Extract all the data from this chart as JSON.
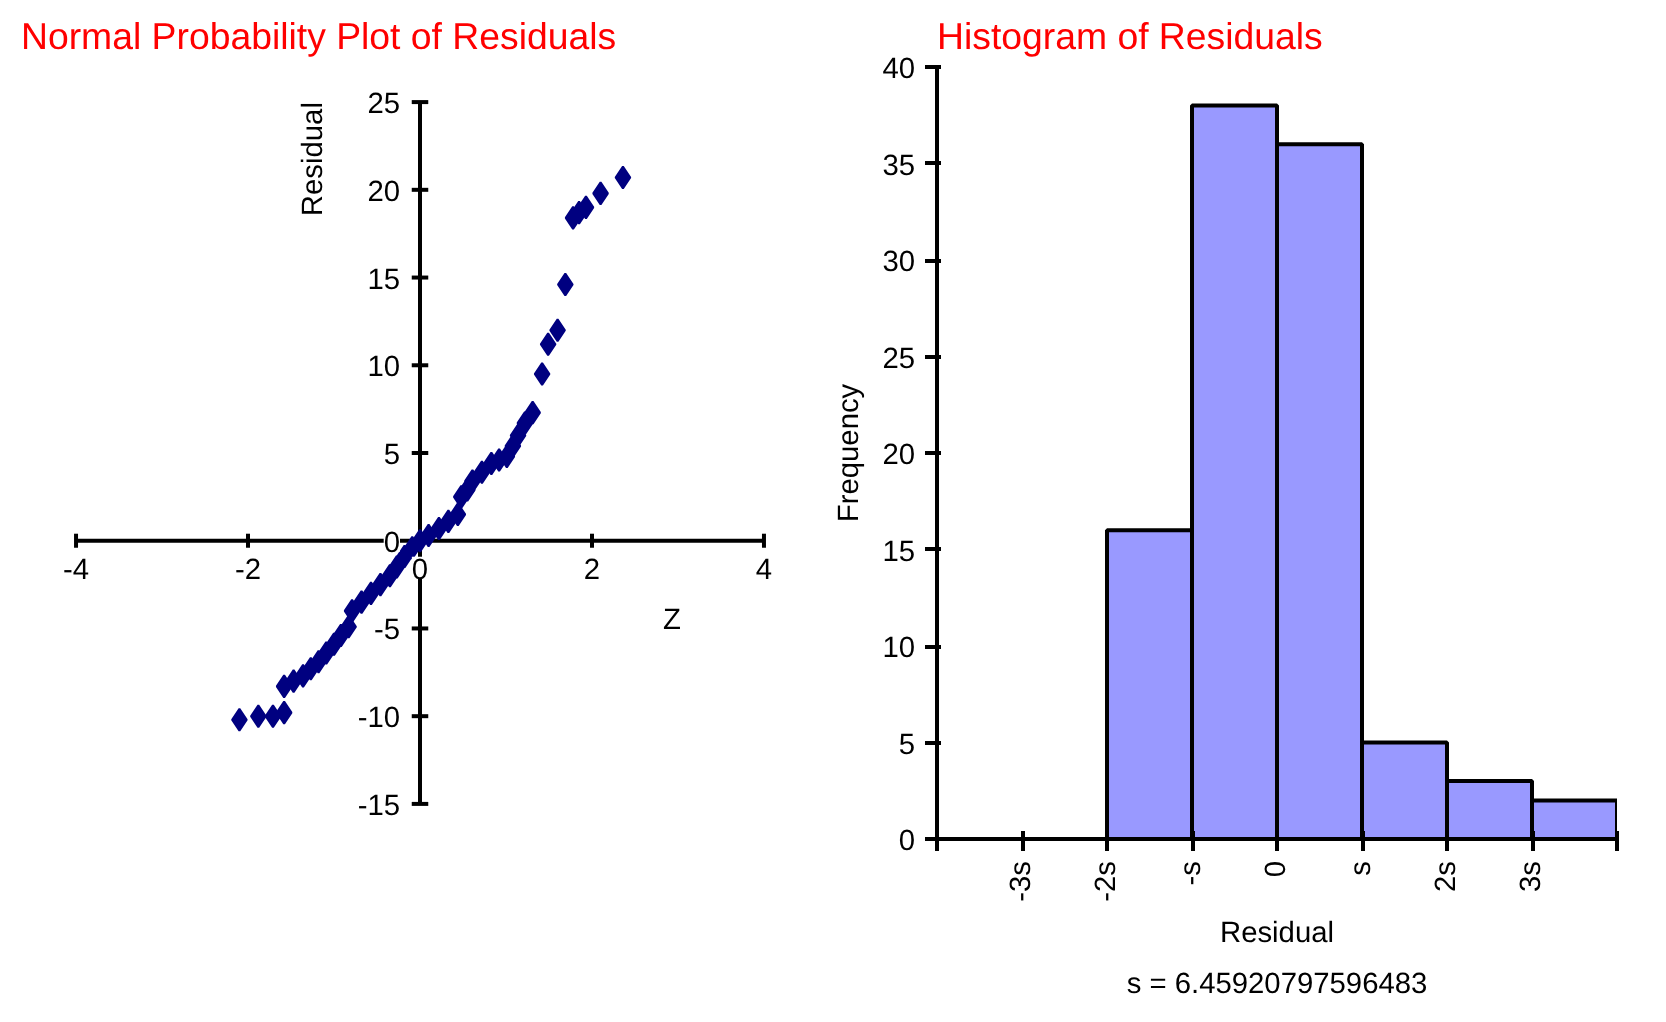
{
  "chart_data": [
    {
      "type": "scatter",
      "title": "Normal Probability Plot of Residuals",
      "xlabel": "Z",
      "ylabel": "Residual",
      "x": [
        -2.1,
        -1.88,
        -1.71,
        -1.58,
        -1.58,
        -1.47,
        -1.36,
        -1.27,
        -1.18,
        -1.09,
        -1.0,
        -0.92,
        -0.83,
        -0.79,
        -0.68,
        -0.57,
        -0.46,
        -0.35,
        -0.27,
        -0.18,
        -0.09,
        0.0,
        0.1,
        0.22,
        0.33,
        0.44,
        0.48,
        0.55,
        0.61,
        0.72,
        0.83,
        0.92,
        1.01,
        1.08,
        1.14,
        1.22,
        1.31,
        1.42,
        1.49,
        1.6,
        1.69,
        1.78,
        1.85,
        1.93,
        2.1,
        2.36
      ],
      "series": [
        {
          "color": "#000080",
          "values": [
            -10.2,
            -10.0,
            -10.0,
            -9.8,
            -8.3,
            -8.0,
            -7.7,
            -7.3,
            -6.9,
            -6.4,
            -5.9,
            -5.4,
            -4.9,
            -4.0,
            -3.5,
            -3.0,
            -2.5,
            -2.0,
            -1.5,
            -0.9,
            -0.4,
            0.0,
            0.3,
            0.7,
            1.1,
            1.5,
            2.5,
            2.9,
            3.4,
            3.9,
            4.4,
            4.6,
            4.8,
            5.4,
            6.0,
            6.7,
            7.3,
            9.5,
            11.2,
            12.0,
            14.6,
            18.4,
            18.7,
            19.0,
            19.8,
            20.7
          ]
        }
      ],
      "marker": "diamond",
      "xlim": [
        -4,
        4
      ],
      "ylim": [
        -15,
        25
      ],
      "xticks": [
        -4,
        -2,
        0,
        2,
        4
      ],
      "yticks": [
        -15,
        -10,
        -5,
        0,
        5,
        10,
        15,
        20,
        25
      ],
      "grid": false
    },
    {
      "type": "histogram",
      "title": "Histogram of Residuals",
      "xlabel": "Residual",
      "ylabel": "Frequency",
      "bins": [
        -4,
        -3,
        -2,
        -1,
        0,
        1,
        2,
        3,
        4
      ],
      "values": [
        0,
        0,
        16,
        38,
        36,
        5,
        3,
        2
      ],
      "color": "#9999ff",
      "xlim": [
        -4,
        4
      ],
      "ylim": [
        0,
        40
      ],
      "xticks": [
        {
          "value": -4,
          "label": null
        },
        {
          "value": -3,
          "label": "-3s"
        },
        {
          "value": -2,
          "label": "-2s"
        },
        {
          "value": -1,
          "label": "-s"
        },
        0,
        {
          "value": 1,
          "label": "s"
        },
        {
          "value": 2,
          "label": "2s"
        },
        {
          "value": 3,
          "label": "3s"
        },
        {
          "value": 4,
          "label": null
        }
      ],
      "yticks": [
        0,
        5,
        10,
        15,
        20,
        25,
        30,
        35,
        40
      ],
      "grid": false,
      "annotations": [
        "s = 6.45920797596483"
      ]
    }
  ]
}
